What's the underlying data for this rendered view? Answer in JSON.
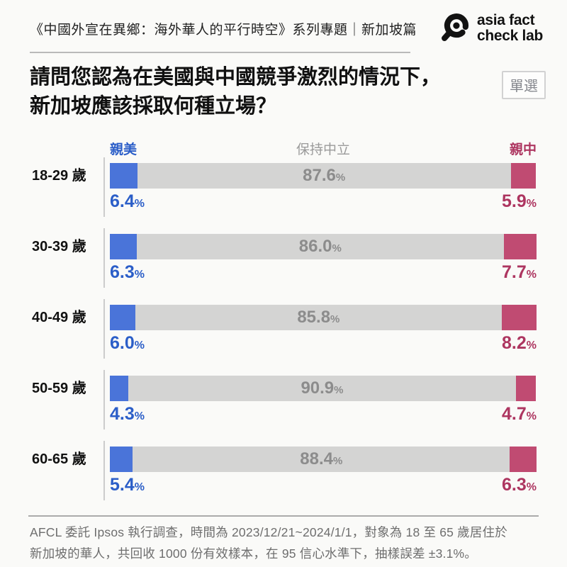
{
  "header": {
    "title": "《中國外宣在異鄉：海外華人的平行時空》系列專題｜新加坡篇",
    "logo": {
      "icon": "magnifier-icon",
      "line1": "asia fact",
      "line2": "check lab"
    }
  },
  "question": {
    "line1": "請問您認為在美國與中國競爭激烈的情況下，",
    "line2": "新加坡應該採取何種立場？",
    "badge": "單選"
  },
  "chart_data": {
    "type": "bar",
    "orientation": "horizontal-stacked",
    "title": "請問您認為在美國與中國競爭激烈的情況下，新加坡應該採取何種立場？",
    "categories": [
      "18-29 歲",
      "30-39 歲",
      "40-49 歲",
      "50-59 歲",
      "60-65 歲"
    ],
    "series": [
      {
        "name": "親美",
        "color": "#4a74d9",
        "values": [
          6.4,
          6.3,
          6.0,
          4.3,
          5.4
        ]
      },
      {
        "name": "保持中立",
        "color": "#d4d4d3",
        "values": [
          87.6,
          86.0,
          85.8,
          90.9,
          88.4
        ]
      },
      {
        "name": "親中",
        "color": "#c04b72",
        "values": [
          5.9,
          7.7,
          8.2,
          4.7,
          6.3
        ]
      }
    ],
    "value_suffix": "%",
    "value_decimals": 1,
    "xlim": [
      0,
      100
    ],
    "grid": false,
    "legend_position": "top"
  },
  "footer": {
    "line1": "AFCL 委託 Ipsos 執行調查，時間為 2023/12/21~2024/1/1，對象為 18 至 65 歲居住於",
    "line2": "新加坡的華人，共回收 1000 份有效樣本，在 95 信心水準下，抽樣誤差 ±3.1%。"
  },
  "colors": {
    "background": "#fafaf8",
    "pro_us_bar": "#4a74d9",
    "pro_us_text": "#2b5ec8",
    "neutral_bar": "#d4d4d3",
    "neutral_text": "#8c8c8c",
    "pro_cn_bar": "#c04b72",
    "pro_cn_text": "#ad3560",
    "legend_neutral": "#9a9a9a",
    "divider": "#b9b9b9",
    "axis_tick": "#cccccc",
    "footer_text": "#6e6e6e",
    "badge_text": "#85878d",
    "badge_border": "#d2d2d2",
    "text_dark": "#151515"
  }
}
